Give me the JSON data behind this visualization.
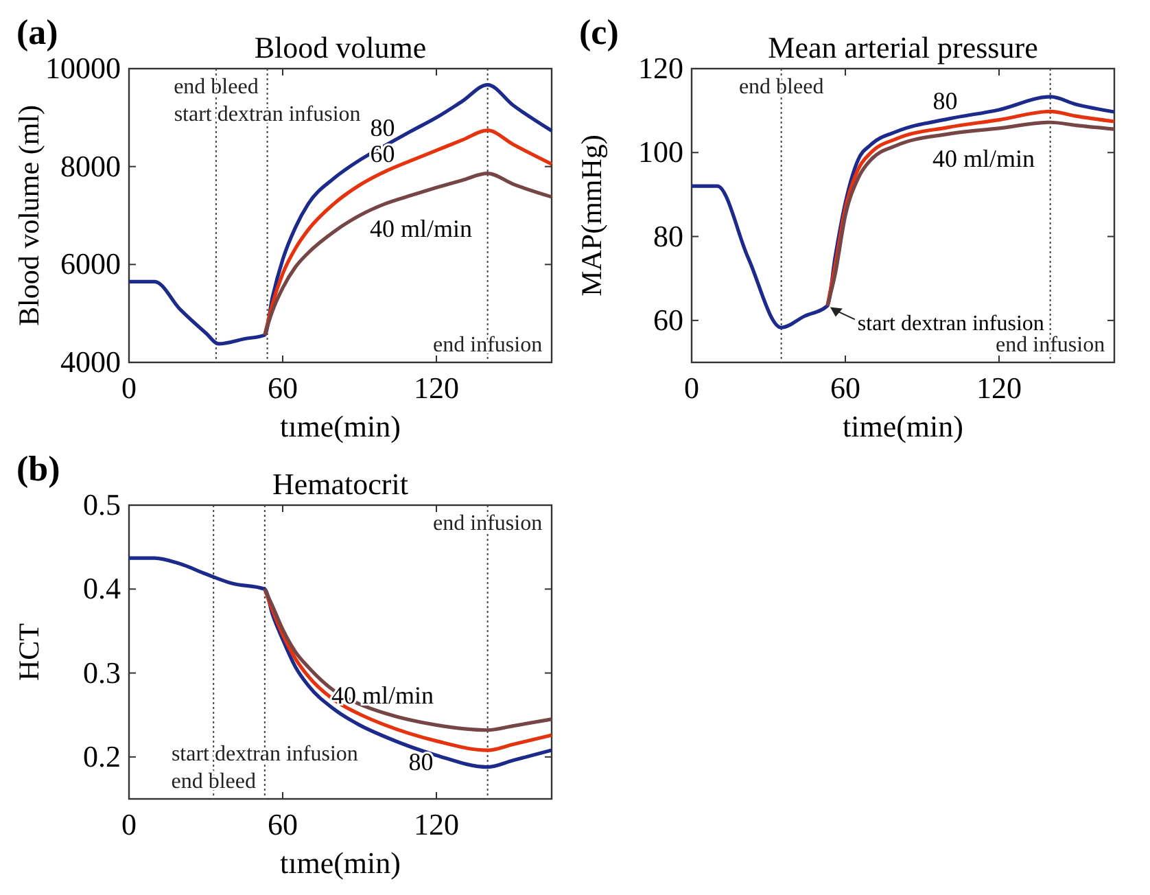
{
  "chart_data": [
    {
      "type": "line",
      "title": "Blood volume",
      "xlabel": "tıme(min)",
      "ylabel": "Blood volume (ml)",
      "annotations": [
        "(a)"
      ],
      "xlim": [
        0,
        165
      ],
      "xticks": [
        0,
        60,
        120
      ],
      "ylim": [
        4000,
        10000
      ],
      "yticks": [
        4000,
        6000,
        8000,
        10000
      ],
      "grid": false,
      "line_style": "solid",
      "marker": "none",
      "ref_lines": [
        {
          "axis": "x",
          "value": 34,
          "label": "end bleed",
          "line_style": "dotted"
        },
        {
          "axis": "x",
          "value": 54,
          "label": "start dextran infusion",
          "line_style": "dotted"
        },
        {
          "axis": "x",
          "value": 140,
          "label": "end infusion",
          "line_style": "dotted"
        }
      ],
      "series": [
        {
          "name": "80",
          "color": "#1c2a8c",
          "x": [
            0,
            10,
            20,
            30,
            35,
            45,
            53,
            56,
            60,
            65,
            70,
            80,
            90,
            100,
            110,
            120,
            130,
            140,
            150,
            165
          ],
          "values": [
            5650,
            5650,
            5080,
            4600,
            4380,
            4480,
            4560,
            5330,
            6100,
            6760,
            7240,
            7760,
            8130,
            8430,
            8720,
            9000,
            9330,
            9670,
            9250,
            8730
          ]
        },
        {
          "name": "60",
          "color": "#e5330f",
          "x": [
            53,
            56,
            60,
            65,
            70,
            80,
            90,
            100,
            110,
            120,
            130,
            140,
            150,
            165
          ],
          "values": [
            4560,
            5190,
            5810,
            6330,
            6710,
            7240,
            7620,
            7900,
            8120,
            8330,
            8540,
            8740,
            8450,
            8050
          ]
        },
        {
          "name": "40 ml/min",
          "color": "#764646",
          "x": [
            53,
            56,
            60,
            65,
            70,
            80,
            90,
            100,
            110,
            120,
            130,
            140,
            150,
            165
          ],
          "values": [
            4560,
            5050,
            5520,
            5950,
            6240,
            6670,
            7000,
            7240,
            7410,
            7570,
            7720,
            7860,
            7640,
            7380
          ]
        }
      ]
    },
    {
      "type": "line",
      "title": "Mean arterial pressure",
      "xlabel": "time(min)",
      "ylabel": "MAP(mmHg)",
      "annotations": [
        "(c)",
        {
          "text": "start dextran infusion",
          "x": 53,
          "y": 63.5
        }
      ],
      "xlim": [
        0,
        165
      ],
      "xticks": [
        0,
        60,
        120
      ],
      "ylim": [
        50,
        120
      ],
      "yticks": [
        60,
        80,
        100,
        120
      ],
      "grid": false,
      "line_style": "solid",
      "marker": "none",
      "ref_lines": [
        {
          "axis": "x",
          "value": 35,
          "label": "end bleed",
          "line_style": "dotted"
        },
        {
          "axis": "x",
          "value": 140,
          "label": "end infusion",
          "line_style": "dotted"
        }
      ],
      "series": [
        {
          "name": "80",
          "color": "#1c2a8c",
          "x": [
            0,
            10,
            22,
            35,
            44,
            53,
            56,
            60,
            65,
            70,
            80,
            100,
            120,
            140,
            150,
            165
          ],
          "values": [
            92,
            92,
            75,
            58.3,
            61,
            63.5,
            75,
            88,
            98.3,
            101.9,
            105,
            108,
            110.2,
            113.3,
            111.5,
            109.7
          ]
        },
        {
          "color": "#e5330f",
          "x": [
            53,
            56,
            60,
            65,
            70,
            80,
            100,
            120,
            140,
            150,
            165
          ],
          "values": [
            63.5,
            73,
            86.7,
            96,
            100,
            103.3,
            106,
            107.8,
            109.8,
            108.7,
            107.4
          ]
        },
        {
          "name": "40 ml/min",
          "color": "#764646",
          "x": [
            53,
            56,
            60,
            65,
            70,
            80,
            100,
            120,
            140,
            150,
            165
          ],
          "values": [
            63.5,
            71,
            85,
            93.9,
            98.3,
            101.7,
            104.4,
            105.8,
            107.2,
            106.5,
            105.6
          ]
        }
      ]
    },
    {
      "type": "line",
      "title": "Hematocrit",
      "xlabel": "tıme(min)",
      "ylabel": "HCT",
      "annotations": [
        "(b)"
      ],
      "xlim": [
        0,
        165
      ],
      "xticks": [
        0,
        60,
        120
      ],
      "ylim": [
        0.15,
        0.5
      ],
      "yticks": [
        0.2,
        0.3,
        0.4,
        0.5
      ],
      "grid": false,
      "line_style": "solid",
      "marker": "none",
      "ref_lines": [
        {
          "axis": "x",
          "value": 33,
          "label": "end bleed",
          "line_style": "dotted"
        },
        {
          "axis": "x",
          "value": 53,
          "label": "start dextran infusion",
          "line_style": "dotted"
        },
        {
          "axis": "x",
          "value": 140,
          "label": "end infusion",
          "line_style": "dotted"
        }
      ],
      "series": [
        {
          "name": "80",
          "color": "#1c2a8c",
          "x": [
            0,
            10,
            20,
            30,
            40,
            53,
            56,
            60,
            65,
            70,
            80,
            90,
            100,
            120,
            140,
            150,
            165
          ],
          "values": [
            0.437,
            0.437,
            0.43,
            0.418,
            0.407,
            0.4,
            0.37,
            0.34,
            0.307,
            0.285,
            0.257,
            0.238,
            0.224,
            0.202,
            0.188,
            0.196,
            0.208
          ]
        },
        {
          "color": "#e5330f",
          "x": [
            53,
            56,
            60,
            65,
            70,
            80,
            90,
            100,
            120,
            140,
            150,
            165
          ],
          "values": [
            0.4,
            0.375,
            0.346,
            0.317,
            0.296,
            0.268,
            0.251,
            0.238,
            0.219,
            0.208,
            0.215,
            0.226
          ]
        },
        {
          "name": "40 ml/min",
          "color": "#764646",
          "x": [
            53,
            56,
            60,
            65,
            70,
            80,
            90,
            100,
            120,
            140,
            150,
            165
          ],
          "values": [
            0.4,
            0.38,
            0.352,
            0.325,
            0.307,
            0.279,
            0.263,
            0.252,
            0.238,
            0.232,
            0.237,
            0.245
          ]
        }
      ]
    }
  ]
}
